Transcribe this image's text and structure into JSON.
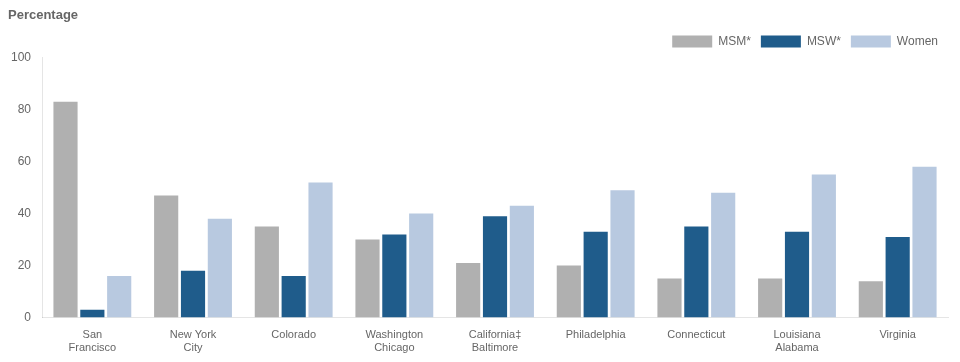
{
  "chart_data": {
    "type": "bar",
    "title": "Percentage",
    "categories": [
      "San\nFrancisco",
      "New York\nCity",
      "Colorado",
      "Washington\nChicago",
      "California‡\nBaltimore",
      "Philadelphia",
      "Connecticut",
      "Louisiana\nAlabama",
      "Virginia"
    ],
    "series": [
      {
        "name": "MSM*",
        "color": "#b0b0b0",
        "values": [
          83,
          47,
          35,
          30,
          21,
          20,
          15,
          15,
          14
        ]
      },
      {
        "name": "MSW*",
        "color": "#1f5c8b",
        "values": [
          3,
          18,
          16,
          32,
          39,
          33,
          35,
          33,
          31
        ]
      },
      {
        "name": "Women",
        "color": "#b8c9e0",
        "values": [
          16,
          38,
          52,
          40,
          43,
          49,
          48,
          55,
          58
        ]
      }
    ],
    "ylim": [
      0,
      100
    ],
    "yticks": [
      0,
      20,
      40,
      60,
      80,
      100
    ],
    "grid": false,
    "legend": "upper right"
  }
}
